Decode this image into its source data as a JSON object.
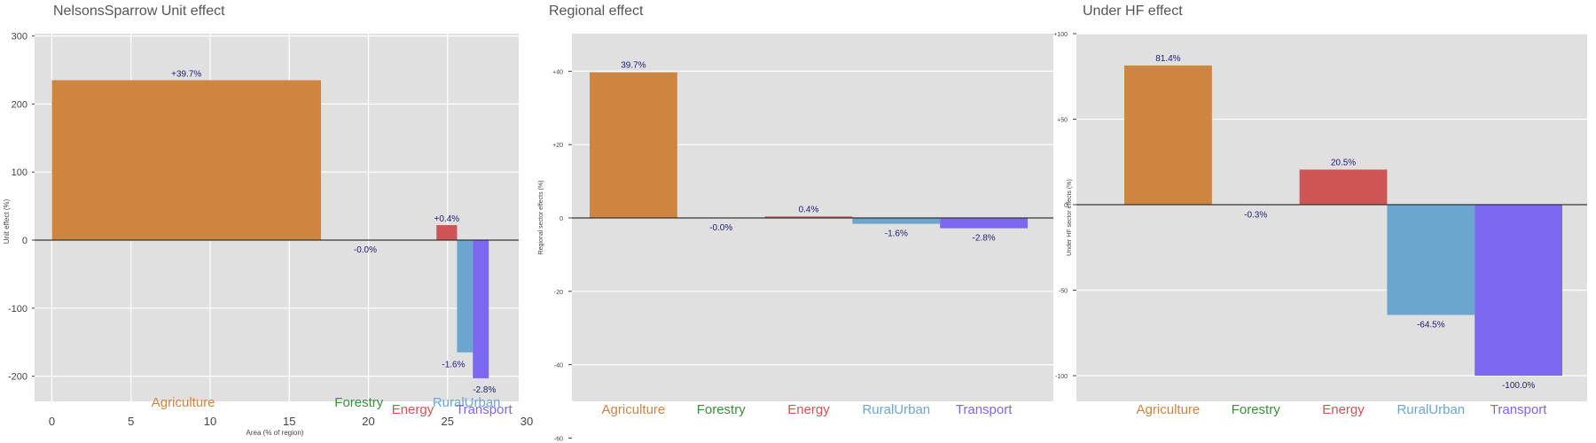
{
  "colors": {
    "Agriculture": "#CD853F",
    "Forestry": "#3C8D3C",
    "Energy": "#CD5555",
    "RuralUrban": "#6BA6CF",
    "Transport": "#7B68EE",
    "panel_bg": "#E0E0E0",
    "label_text": "#1C1C7A"
  },
  "chart_data": [
    {
      "type": "bar",
      "subtype": "variable-width",
      "title": "NelsonsSparrow Unit effect",
      "xlabel": "Area (% of region)",
      "ylabel": "Unit effect (%)",
      "xlim": [
        -1,
        30
      ],
      "ylim": [
        -235,
        300
      ],
      "xticks": [
        "0",
        "5",
        "10",
        "15",
        "20",
        "25",
        "30"
      ],
      "yticks": [
        "300",
        "200",
        "100",
        "0",
        "-100",
        "-200"
      ],
      "bars": [
        {
          "category": "Agriculture",
          "x_start": 0,
          "x_end": 17,
          "value": 235,
          "label": "+39.7%"
        },
        {
          "category": "Forestry",
          "x_start": 17,
          "x_end": 24.3,
          "value": 0,
          "label": "-0.0%"
        },
        {
          "category": "Energy",
          "x_start": 24.3,
          "x_end": 25.6,
          "value": 22,
          "label": "+0.4%"
        },
        {
          "category": "RuralUrban",
          "x_start": 25.6,
          "x_end": 26.6,
          "value": -165,
          "label": "-1.6%"
        },
        {
          "category": "Transport",
          "x_start": 26.6,
          "x_end": 27.6,
          "value": -203,
          "label": "-2.8%"
        }
      ]
    },
    {
      "type": "bar",
      "title": "Regional effect",
      "xlabel": "",
      "ylabel": "Regional sector effects (%)",
      "ylim": [
        -60,
        50
      ],
      "yticks": [
        "+40",
        "+20",
        "0",
        "-20",
        "-40",
        "-60"
      ],
      "categories": [
        "Agriculture",
        "Forestry",
        "Energy",
        "RuralUrban",
        "Transport"
      ],
      "values": [
        39.7,
        -0.0,
        0.4,
        -1.6,
        -2.8
      ],
      "labels": [
        "39.7%",
        "-0.0%",
        "0.4%",
        "-1.6%",
        "-2.8%"
      ]
    },
    {
      "type": "bar",
      "title": "Under HF effect",
      "xlabel": "",
      "ylabel": "Under HF sector effects (%)",
      "ylim": [
        -115,
        100
      ],
      "yticks": [
        "+100",
        "+50",
        "0",
        "-50",
        "-100"
      ],
      "categories": [
        "Agriculture",
        "Forestry",
        "Energy",
        "RuralUrban",
        "Transport"
      ],
      "values": [
        81.4,
        -0.3,
        20.5,
        -64.5,
        -100.0
      ],
      "labels": [
        "81.4%",
        "-0.3%",
        "20.5%",
        "-64.5%",
        "-100.0%"
      ]
    }
  ]
}
